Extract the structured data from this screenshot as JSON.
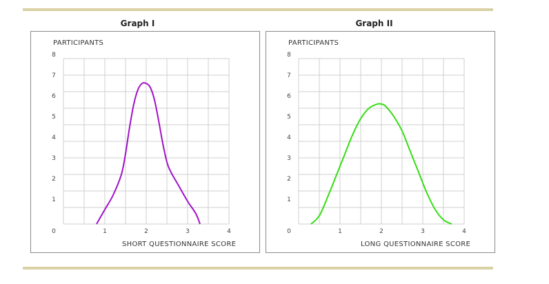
{
  "chart_data": [
    {
      "type": "line",
      "title": "Graph I",
      "ylabel": "PARTICIPANTS",
      "xlabel": "SHORT QUESTIONNAIRE SCORE",
      "xlim": [
        0,
        4
      ],
      "ylim": [
        0,
        8
      ],
      "xticks": [
        "0",
        "1",
        "2",
        "3",
        "4"
      ],
      "yticks": [
        "1",
        "2",
        "3",
        "4",
        "5",
        "6",
        "7",
        "8"
      ],
      "grid": true,
      "color": "#a010c8",
      "series": [
        {
          "x": [
            0.8,
            1.0,
            1.2,
            1.4,
            1.5,
            1.6,
            1.7,
            1.8,
            1.9,
            2.0,
            2.1,
            2.2,
            2.3,
            2.4,
            2.5,
            2.6,
            2.8,
            3.0,
            3.2,
            3.3
          ],
          "y": [
            0.0,
            0.7,
            1.4,
            2.4,
            3.4,
            4.7,
            5.8,
            6.5,
            6.8,
            6.8,
            6.6,
            6.0,
            5.0,
            3.9,
            3.0,
            2.5,
            1.8,
            1.1,
            0.5,
            0.0
          ]
        }
      ]
    },
    {
      "type": "line",
      "title": "Graph II",
      "ylabel": "PARTICIPANTS",
      "xlabel": "LONG QUESTIONNAIRE SCORE",
      "xlim": [
        0,
        4
      ],
      "ylim": [
        0,
        8
      ],
      "xticks": [
        "0",
        "1",
        "2",
        "3",
        "4"
      ],
      "yticks": [
        "1",
        "2",
        "3",
        "4",
        "5",
        "6",
        "7",
        "8"
      ],
      "grid": true,
      "color": "#33dd11",
      "series": [
        {
          "x": [
            0.3,
            0.5,
            0.7,
            0.9,
            1.1,
            1.3,
            1.5,
            1.7,
            1.9,
            2.0,
            2.1,
            2.3,
            2.5,
            2.7,
            2.9,
            3.1,
            3.3,
            3.5,
            3.7
          ],
          "y": [
            0.0,
            0.4,
            1.3,
            2.3,
            3.3,
            4.3,
            5.1,
            5.6,
            5.8,
            5.8,
            5.7,
            5.2,
            4.5,
            3.5,
            2.5,
            1.5,
            0.7,
            0.2,
            0.0
          ]
        }
      ]
    }
  ]
}
